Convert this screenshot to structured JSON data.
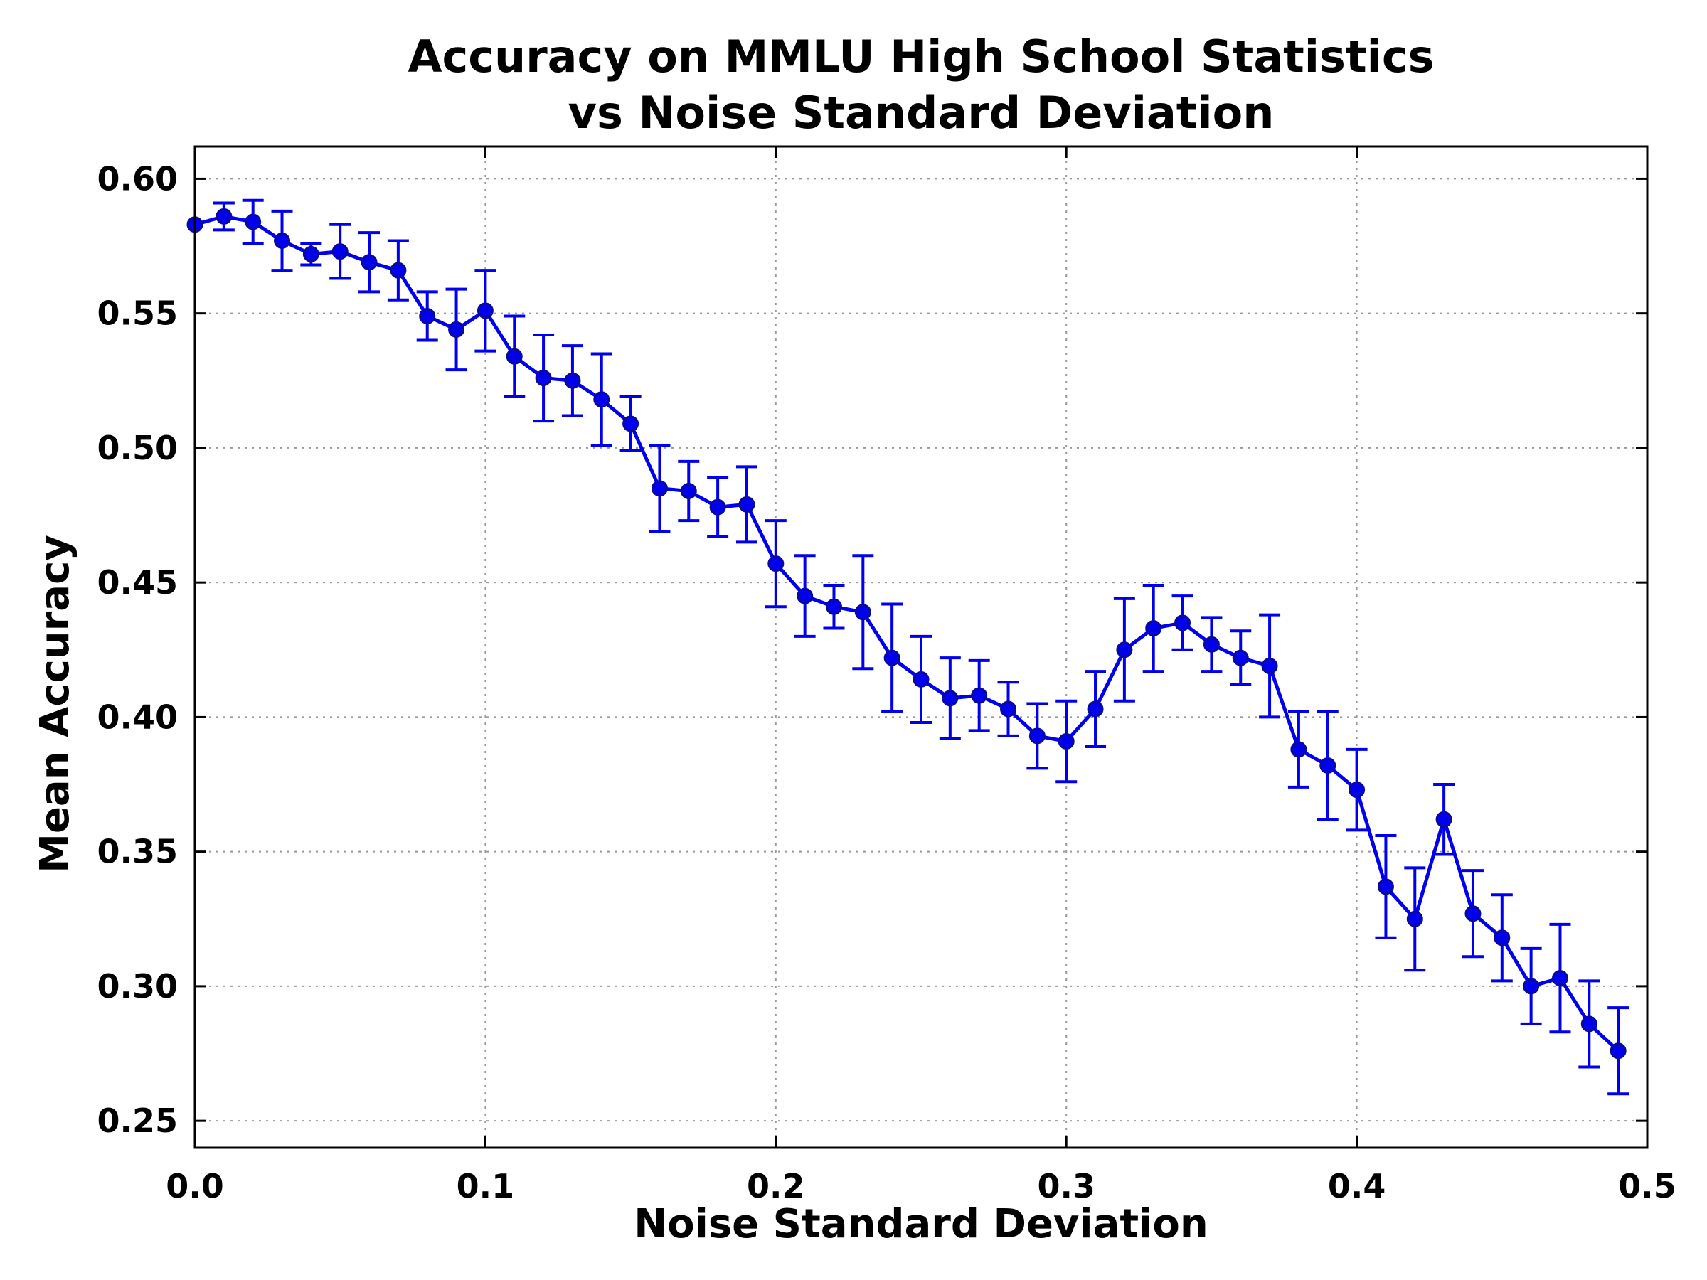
{
  "chart_data": {
    "type": "line",
    "title": [
      "Accuracy on MMLU High School Statistics",
      "vs Noise Standard Deviation"
    ],
    "xlabel": "Noise Standard Deviation",
    "ylabel": "Mean Accuracy",
    "xlim": [
      0.0,
      0.5
    ],
    "ylim": [
      0.24,
      0.612
    ],
    "xticks": [
      0.0,
      0.1,
      0.2,
      0.3,
      0.4,
      0.5
    ],
    "xtick_labels": [
      "0.0",
      "0.1",
      "0.2",
      "0.3",
      "0.4",
      "0.5"
    ],
    "yticks": [
      0.25,
      0.3,
      0.35,
      0.4,
      0.45,
      0.5,
      0.55,
      0.6
    ],
    "ytick_labels": [
      "0.25",
      "0.30",
      "0.35",
      "0.40",
      "0.45",
      "0.50",
      "0.55",
      "0.60"
    ],
    "grid": true,
    "color": "#0000ee",
    "marker_color": "#0a0a9a",
    "series": [
      {
        "x": [
          0.0,
          0.01,
          0.02,
          0.03,
          0.04,
          0.05,
          0.06,
          0.07,
          0.08,
          0.09,
          0.1,
          0.11,
          0.12,
          0.13,
          0.14,
          0.15,
          0.16,
          0.17,
          0.18,
          0.19,
          0.2,
          0.21,
          0.22,
          0.23,
          0.24,
          0.25,
          0.26,
          0.27,
          0.28,
          0.29,
          0.3,
          0.31,
          0.32,
          0.33,
          0.34,
          0.35,
          0.36,
          0.37,
          0.38,
          0.39,
          0.4,
          0.41,
          0.42,
          0.43,
          0.44,
          0.45,
          0.46,
          0.47,
          0.48,
          0.49
        ],
        "y": [
          0.583,
          0.586,
          0.584,
          0.577,
          0.572,
          0.573,
          0.569,
          0.566,
          0.549,
          0.544,
          0.551,
          0.534,
          0.526,
          0.525,
          0.518,
          0.509,
          0.485,
          0.484,
          0.478,
          0.479,
          0.457,
          0.445,
          0.441,
          0.439,
          0.422,
          0.414,
          0.407,
          0.408,
          0.403,
          0.393,
          0.391,
          0.403,
          0.425,
          0.433,
          0.435,
          0.427,
          0.422,
          0.419,
          0.388,
          0.382,
          0.373,
          0.337,
          0.325,
          0.362,
          0.327,
          0.318,
          0.3,
          0.303,
          0.286,
          0.276
        ],
        "err": [
          0.0,
          0.005,
          0.008,
          0.011,
          0.004,
          0.01,
          0.011,
          0.011,
          0.009,
          0.015,
          0.015,
          0.015,
          0.016,
          0.013,
          0.017,
          0.01,
          0.016,
          0.011,
          0.011,
          0.014,
          0.016,
          0.015,
          0.008,
          0.021,
          0.02,
          0.016,
          0.015,
          0.013,
          0.01,
          0.012,
          0.015,
          0.014,
          0.019,
          0.016,
          0.01,
          0.01,
          0.01,
          0.019,
          0.014,
          0.02,
          0.015,
          0.019,
          0.019,
          0.013,
          0.016,
          0.016,
          0.014,
          0.02,
          0.016,
          0.016
        ]
      }
    ]
  }
}
